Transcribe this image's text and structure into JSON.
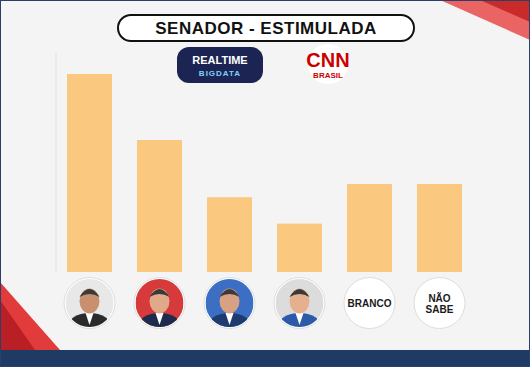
{
  "chart_data": {
    "type": "bar",
    "title": "SENADOR - ESTIMULADA",
    "logos": [
      {
        "text": "REALTIME",
        "subtext": "BIGDATA"
      },
      {
        "text": "CNN",
        "subtext": "BRASIL"
      }
    ],
    "categories": [
      null,
      null,
      null,
      null,
      "BRANCO",
      "NÃO SABE"
    ],
    "values": [
      45,
      30,
      17,
      11,
      20,
      20
    ],
    "color": "#fac87e",
    "ylim": [
      0,
      50
    ],
    "tick_labels": false,
    "grid": false,
    "data_labels": false
  }
}
